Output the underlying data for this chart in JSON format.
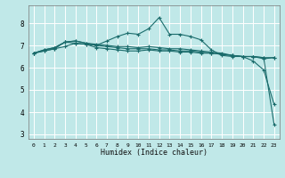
{
  "title": "",
  "xlabel": "Humidex (Indice chaleur)",
  "xlim": [
    -0.5,
    23.5
  ],
  "ylim": [
    2.8,
    8.8
  ],
  "yticks": [
    3,
    4,
    5,
    6,
    7,
    8
  ],
  "xticks": [
    0,
    1,
    2,
    3,
    4,
    5,
    6,
    7,
    8,
    9,
    10,
    11,
    12,
    13,
    14,
    15,
    16,
    17,
    18,
    19,
    20,
    21,
    22,
    23
  ],
  "background_color": "#c0e8e8",
  "grid_color": "#ffffff",
  "line_color": "#1a6b6b",
  "lines": [
    [
      6.65,
      6.75,
      6.85,
      6.95,
      7.1,
      7.05,
      6.9,
      6.85,
      6.8,
      6.75,
      6.75,
      6.8,
      6.75,
      6.75,
      6.7,
      6.7,
      6.65,
      6.65,
      6.6,
      6.55,
      6.5,
      6.5,
      6.45,
      6.45
    ],
    [
      6.65,
      6.8,
      6.9,
      7.15,
      7.2,
      7.1,
      7.0,
      7.2,
      7.4,
      7.55,
      7.5,
      7.75,
      8.25,
      7.5,
      7.5,
      7.4,
      7.25,
      6.8,
      6.55,
      6.5,
      6.5,
      6.3,
      5.9,
      4.35
    ],
    [
      6.65,
      6.8,
      6.9,
      7.15,
      7.2,
      7.1,
      7.05,
      7.0,
      6.95,
      6.95,
      6.9,
      6.95,
      6.9,
      6.85,
      6.85,
      6.8,
      6.75,
      6.7,
      6.65,
      6.55,
      6.5,
      6.5,
      6.4,
      6.45
    ],
    [
      6.65,
      6.75,
      6.85,
      7.15,
      7.1,
      7.05,
      7.0,
      6.95,
      6.9,
      6.85,
      6.85,
      6.85,
      6.8,
      6.8,
      6.75,
      6.75,
      6.7,
      6.65,
      6.6,
      6.55,
      6.5,
      6.5,
      6.45,
      3.45
    ]
  ]
}
